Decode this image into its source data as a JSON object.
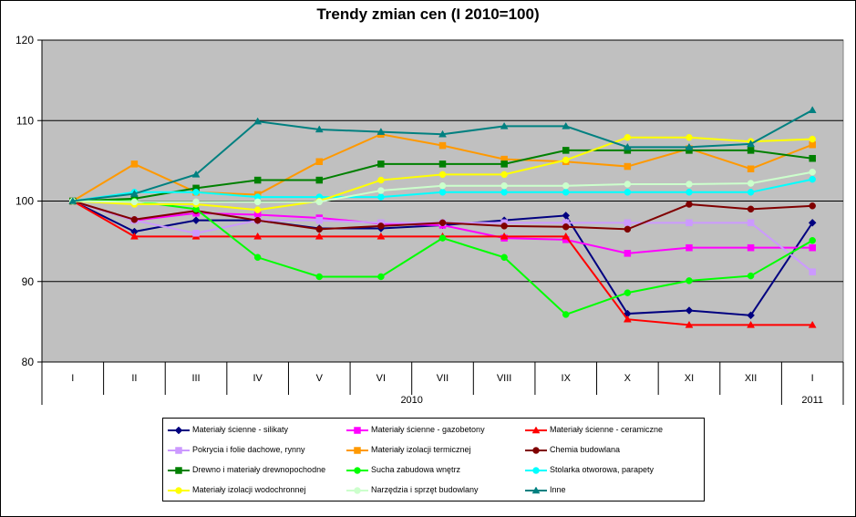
{
  "chart_data": {
    "type": "line",
    "title": "Trendy zmian cen (I 2010=100)",
    "categories": [
      "I",
      "II",
      "III",
      "IV",
      "V",
      "VI",
      "VII",
      "VIII",
      "IX",
      "X",
      "XI",
      "XII",
      "I"
    ],
    "year_groups": [
      {
        "label": "2010",
        "from": 0,
        "to": 11
      },
      {
        "label": "2011",
        "from": 12,
        "to": 12
      }
    ],
    "ylim": [
      80,
      120
    ],
    "yticks": [
      80,
      90,
      100,
      110,
      120
    ],
    "grid": true,
    "plot_background": "#c0c0c0",
    "legend_position": "bottom",
    "series": [
      {
        "name": "Materiały ścienne - silikaty",
        "color": "#000080",
        "marker": "diamond",
        "values": [
          100,
          96.2,
          97.6,
          97.6,
          96.6,
          96.6,
          97.0,
          97.6,
          98.2,
          86.0,
          86.4,
          85.8,
          97.3
        ]
      },
      {
        "name": "Materiały ścienne - gazobetony",
        "color": "#ff00ff",
        "marker": "square",
        "values": [
          100,
          97.6,
          98.5,
          98.3,
          97.9,
          97.2,
          97.0,
          95.4,
          95.2,
          93.5,
          94.2,
          94.2,
          94.2
        ]
      },
      {
        "name": "Materiały ścienne - ceramiczne",
        "color": "#ff0000",
        "marker": "triangle",
        "values": [
          100,
          95.6,
          95.6,
          95.6,
          95.6,
          95.6,
          95.6,
          95.6,
          95.6,
          85.3,
          84.6,
          84.6,
          84.6
        ]
      },
      {
        "name": "Pokrycia i folie dachowe, rynny",
        "color": "#cc99ff",
        "marker": "square",
        "values": [
          100,
          97.6,
          96.0,
          97.6,
          97.6,
          97.3,
          97.3,
          97.3,
          97.3,
          97.3,
          97.3,
          97.3,
          91.2
        ]
      },
      {
        "name": "Materiały izolacji termicznej",
        "color": "#ff9900",
        "marker": "square",
        "values": [
          100,
          104.6,
          101.1,
          100.8,
          104.9,
          108.3,
          106.9,
          105.2,
          104.9,
          104.3,
          106.5,
          104.0,
          107.0
        ]
      },
      {
        "name": "Chemia budowlana",
        "color": "#800000",
        "marker": "circle",
        "values": [
          100,
          97.7,
          98.8,
          97.6,
          96.5,
          96.9,
          97.3,
          96.9,
          96.8,
          96.5,
          99.6,
          99.0,
          99.4
        ]
      },
      {
        "name": "Drewno i materiały drewnopochodne",
        "color": "#008000",
        "marker": "square",
        "values": [
          100,
          100.3,
          101.6,
          102.6,
          102.6,
          104.6,
          104.6,
          104.6,
          106.3,
          106.3,
          106.3,
          106.3,
          105.3
        ]
      },
      {
        "name": "Sucha zabudowa wnętrz",
        "color": "#00ff00",
        "marker": "circle",
        "values": [
          100,
          100.0,
          99.0,
          93.0,
          90.6,
          90.6,
          95.4,
          93.0,
          85.9,
          88.6,
          90.1,
          90.7,
          95.1
        ]
      },
      {
        "name": "Stolarka otworowa, parapety",
        "color": "#00ffff",
        "marker": "circle",
        "values": [
          100,
          101.1,
          101.1,
          100.5,
          100.5,
          100.5,
          101.1,
          101.1,
          101.1,
          101.1,
          101.1,
          101.1,
          102.7
        ]
      },
      {
        "name": "Materiały izolacji wodochronnej",
        "color": "#ffff00",
        "marker": "circle",
        "values": [
          100,
          99.6,
          99.6,
          98.9,
          100.0,
          102.6,
          103.3,
          103.3,
          105.1,
          107.9,
          107.9,
          107.4,
          107.7
        ]
      },
      {
        "name": "Narzędzia i sprzęt budowlany",
        "color": "#ccffcc",
        "marker": "circle",
        "values": [
          100,
          99.9,
          99.9,
          99.9,
          99.9,
          101.3,
          101.9,
          101.9,
          101.9,
          102.1,
          102.1,
          102.2,
          103.6
        ]
      },
      {
        "name": "Inne",
        "color": "#008080",
        "marker": "triangle",
        "values": [
          100,
          100.9,
          103.3,
          109.9,
          108.9,
          108.6,
          108.3,
          109.3,
          109.3,
          106.7,
          106.7,
          107.1,
          111.3
        ]
      }
    ]
  }
}
